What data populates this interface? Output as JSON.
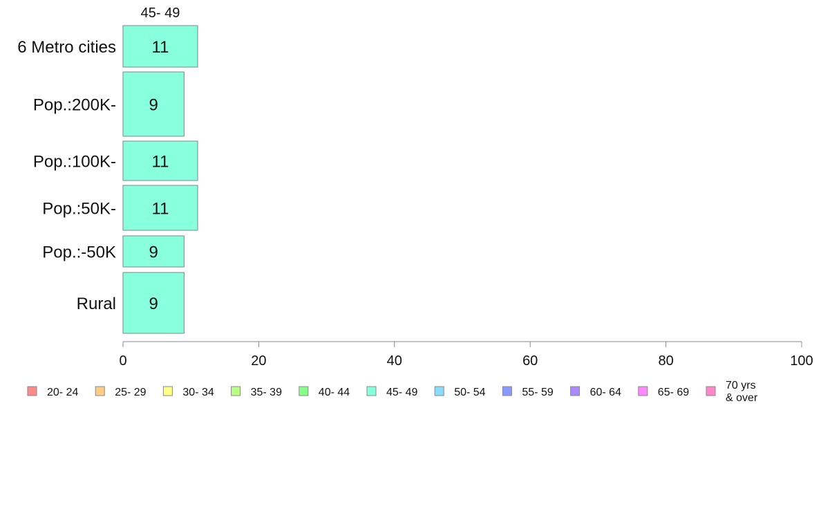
{
  "chart_data": {
    "type": "bar",
    "orientation": "horizontal",
    "categories": [
      "6 Metro cities",
      "Pop.:200K-",
      "Pop.:100K-",
      "Pop.:50K-",
      "Pop.:-50K",
      "Rural"
    ],
    "series": [
      {
        "name": "45- 49",
        "values": [
          11,
          9,
          11,
          11,
          9,
          9
        ],
        "color": "#88ffdd"
      }
    ],
    "value_labels": [
      "11",
      "9",
      "11",
      "11",
      "9",
      "9"
    ],
    "top_label": "45- 49",
    "xlim": [
      0,
      100
    ],
    "xticks": [
      0,
      20,
      40,
      60,
      80,
      100
    ],
    "xtick_labels": [
      "0",
      "20",
      "40",
      "60",
      "80",
      "100"
    ],
    "grid": false,
    "legend_position": "bottom",
    "legend": [
      {
        "label": "20- 24",
        "color": "#ff8888"
      },
      {
        "label": "25- 29",
        "color": "#ffcc88"
      },
      {
        "label": "30- 34",
        "color": "#ffff88"
      },
      {
        "label": "35- 39",
        "color": "#bbff88"
      },
      {
        "label": "40- 44",
        "color": "#88ff88"
      },
      {
        "label": "45- 49",
        "color": "#88ffdd"
      },
      {
        "label": "50- 54",
        "color": "#88ddff"
      },
      {
        "label": "55- 59",
        "color": "#8899ff"
      },
      {
        "label": "60- 64",
        "color": "#aa88ff"
      },
      {
        "label": "65- 69",
        "color": "#ff88ff"
      },
      {
        "label": "70 yrs\n& over",
        "color": "#ff88cc"
      }
    ]
  }
}
